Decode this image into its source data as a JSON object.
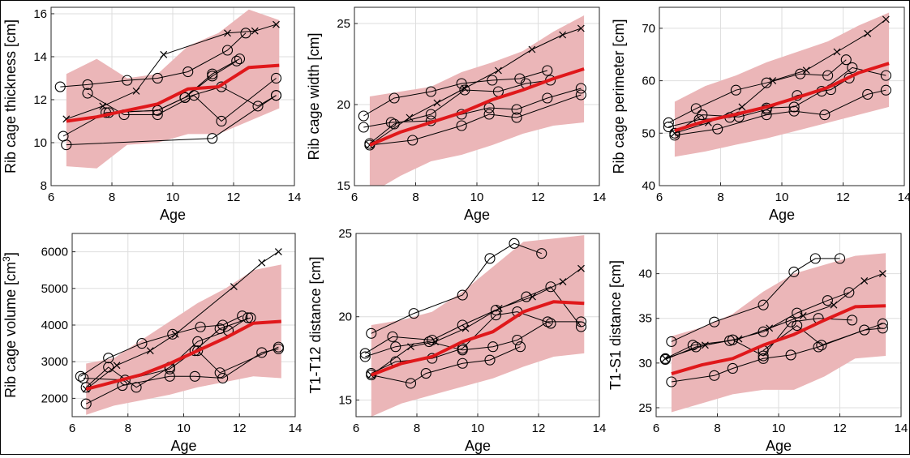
{
  "chart_data": [
    {
      "type": "line",
      "title": "",
      "xlabel": "Age",
      "ylabel": "Rib cage thickness [cm]",
      "xlim": [
        6,
        14
      ],
      "ylim": [
        8,
        16.3
      ],
      "xticks": [
        6,
        8,
        10,
        12,
        14
      ],
      "yticks": [
        8,
        10,
        12,
        14,
        16
      ],
      "grid": true,
      "mean": {
        "x": [
          6.5,
          7.5,
          8.5,
          9.5,
          10.5,
          11.5,
          12.5,
          13.5
        ],
        "y": [
          11.0,
          11.2,
          11.5,
          11.8,
          12.5,
          12.6,
          13.5,
          13.6
        ]
      },
      "band": {
        "x": [
          6.5,
          7.5,
          8.5,
          9.5,
          10.5,
          11.5,
          12.5,
          13.5
        ],
        "lower": [
          8.9,
          8.8,
          9.9,
          10.0,
          10.4,
          10.4,
          11.0,
          11.6
        ],
        "upper": [
          13.2,
          13.9,
          13.0,
          13.2,
          14.5,
          15.1,
          16.2,
          15.7
        ]
      },
      "series": [
        {
          "marker": "x",
          "x": [
            6.5,
            7.7,
            8.8,
            9.7,
            11.8,
            12.7,
            13.4
          ],
          "y": [
            11.1,
            11.7,
            12.4,
            14.1,
            15.1,
            15.2,
            15.5
          ]
        },
        {
          "marker": "o",
          "x": [
            6.3,
            7.2,
            8.5,
            9.5,
            10.5,
            11.8,
            12.4
          ],
          "y": [
            12.6,
            12.7,
            12.9,
            13.0,
            13.3,
            14.3,
            15.1
          ]
        },
        {
          "marker": "o",
          "x": [
            6.4,
            7.8,
            9.5,
            10.4,
            11.3,
            12.2
          ],
          "y": [
            10.3,
            11.4,
            11.5,
            12.1,
            13.2,
            13.9
          ]
        },
        {
          "marker": "o",
          "x": [
            6.5,
            11.3,
            13.4
          ],
          "y": [
            9.9,
            10.2,
            12.2
          ]
        },
        {
          "marker": "o",
          "x": [
            7.2,
            8.4,
            9.5,
            10.7,
            11.6,
            13.4
          ],
          "y": [
            12.3,
            11.3,
            11.3,
            12.2,
            11.0,
            13.0
          ]
        },
        {
          "marker": "o",
          "x": [
            7.9,
            9.5,
            10.4,
            11.3,
            12.1
          ],
          "y": [
            11.4,
            11.5,
            12.1,
            13.1,
            13.8
          ]
        },
        {
          "marker": "o",
          "x": [
            10.4,
            11.6,
            12.8,
            13.4
          ],
          "y": [
            12.1,
            12.6,
            11.7,
            12.2
          ]
        }
      ]
    },
    {
      "type": "line",
      "title": "",
      "xlabel": "Age",
      "ylabel": "Rib cage width [cm]",
      "xlim": [
        6,
        14
      ],
      "ylim": [
        15,
        26
      ],
      "xticks": [
        6,
        8,
        10,
        12,
        14
      ],
      "yticks": [
        15,
        20,
        25
      ],
      "grid": true,
      "mean": {
        "x": [
          6.5,
          7.5,
          8.5,
          9.5,
          10.5,
          11.5,
          12.5,
          13.5
        ],
        "y": [
          17.5,
          18.3,
          18.9,
          19.5,
          20.3,
          20.9,
          21.6,
          22.2
        ]
      },
      "band": {
        "x": [
          6.5,
          7.5,
          8.5,
          9.5,
          10.5,
          11.5,
          12.5,
          13.5
        ],
        "lower": [
          14.5,
          15.6,
          16.5,
          16.9,
          17.5,
          18.2,
          18.7,
          18.9
        ],
        "upper": [
          20.5,
          20.8,
          21.1,
          22.0,
          22.6,
          23.3,
          24.5,
          25.5
        ]
      },
      "series": [
        {
          "marker": "x",
          "x": [
            6.5,
            7.8,
            8.7,
            9.6,
            10.7,
            11.8,
            12.8,
            13.4
          ],
          "y": [
            17.5,
            19.2,
            20.1,
            21.0,
            22.1,
            23.4,
            24.3,
            24.7
          ]
        },
        {
          "marker": "o",
          "x": [
            6.3,
            7.3,
            8.5,
            9.5,
            10.5,
            11.4,
            12.3
          ],
          "y": [
            19.3,
            20.4,
            20.8,
            21.3,
            21.5,
            21.6,
            22.1
          ]
        },
        {
          "marker": "o",
          "x": [
            6.3,
            7.2,
            8.5,
            9.5,
            10.4,
            11.3,
            12.3,
            13.4
          ],
          "y": [
            18.6,
            18.9,
            19.0,
            19.4,
            19.8,
            19.7,
            20.4,
            21.0
          ]
        },
        {
          "marker": "o",
          "x": [
            6.5,
            7.9,
            9.5,
            10.4,
            11.3,
            13.4
          ],
          "y": [
            17.5,
            17.8,
            18.7,
            19.4,
            19.2,
            20.6
          ]
        },
        {
          "marker": "o",
          "x": [
            6.5,
            7.3,
            8.5,
            9.6,
            10.7,
            11.6,
            12.4
          ],
          "y": [
            17.6,
            18.8,
            19.4,
            20.9,
            20.8,
            21.3,
            21.5
          ]
        }
      ]
    },
    {
      "type": "line",
      "title": "",
      "xlabel": "Age",
      "ylabel": "Rib cage perimeter [cm]",
      "xlim": [
        6,
        14
      ],
      "ylim": [
        40,
        74
      ],
      "xticks": [
        6,
        8,
        10,
        12,
        14
      ],
      "yticks": [
        40,
        50,
        60,
        70
      ],
      "grid": true,
      "mean": {
        "x": [
          6.5,
          7.5,
          8.5,
          9.5,
          10.5,
          11.5,
          12.5,
          13.5
        ],
        "y": [
          50.5,
          52.3,
          53.6,
          55.0,
          56.8,
          58.7,
          61.5,
          63.3
        ]
      },
      "band": {
        "x": [
          6.5,
          7.5,
          8.5,
          9.5,
          10.5,
          11.5,
          12.5,
          13.5
        ],
        "lower": [
          45.5,
          46.5,
          47.8,
          49.0,
          50.5,
          52.0,
          53.5,
          55.0
        ],
        "upper": [
          56.0,
          59.0,
          61.0,
          63.5,
          65.5,
          67.5,
          70.5,
          73.0
        ]
      },
      "series": [
        {
          "marker": "x",
          "x": [
            6.5,
            7.6,
            8.7,
            9.7,
            10.8,
            11.8,
            12.8,
            13.4
          ],
          "y": [
            50.0,
            52.0,
            55.0,
            60.0,
            62.0,
            65.5,
            69.0,
            71.7
          ]
        },
        {
          "marker": "o",
          "x": [
            6.3,
            7.2,
            8.5,
            9.5,
            10.6,
            11.5,
            12.1
          ],
          "y": [
            52.0,
            54.7,
            58.2,
            59.6,
            61.3,
            61.0,
            64.0
          ]
        },
        {
          "marker": "o",
          "x": [
            6.3,
            7.3,
            8.3,
            9.5,
            10.4,
            11.3,
            12.3,
            13.4
          ],
          "y": [
            51.2,
            52.6,
            53.0,
            54.8,
            55.0,
            58.0,
            62.5,
            61.0
          ]
        },
        {
          "marker": "o",
          "x": [
            6.5,
            7.9,
            9.5,
            10.4,
            11.4,
            12.8,
            13.4
          ],
          "y": [
            49.6,
            50.8,
            53.5,
            54.2,
            53.5,
            57.4,
            58.2
          ]
        },
        {
          "marker": "o",
          "x": [
            6.5,
            7.4,
            8.6,
            9.5,
            10.5,
            11.6,
            12.2
          ],
          "y": [
            50.0,
            53.5,
            53.1,
            54.5,
            57.2,
            58.3,
            60.5
          ]
        }
      ]
    },
    {
      "type": "line",
      "title": "",
      "xlabel": "Age",
      "ylabel": "Rib cage volume [cm",
      "ylabel_sup": "3",
      "ylabel_end": "]",
      "xlim": [
        6,
        14
      ],
      "ylim": [
        1500,
        6500
      ],
      "xticks": [
        6,
        8,
        10,
        12,
        14
      ],
      "yticks": [
        2000,
        3000,
        4000,
        5000,
        6000
      ],
      "grid": true,
      "mean": {
        "x": [
          6.5,
          7.5,
          8.5,
          9.5,
          10.5,
          11.5,
          12.5,
          13.5
        ],
        "y": [
          2250,
          2450,
          2650,
          2950,
          3300,
          3650,
          4050,
          4100
        ]
      },
      "band": {
        "x": [
          6.5,
          7.5,
          8.5,
          9.5,
          10.5,
          11.5,
          12.5,
          13.5
        ],
        "lower": [
          1550,
          1800,
          1950,
          2100,
          2300,
          2450,
          2600,
          2550
        ],
        "upper": [
          2950,
          3100,
          3600,
          4100,
          4600,
          5000,
          5500,
          5650
        ]
      },
      "series": [
        {
          "marker": "x",
          "x": [
            6.5,
            7.6,
            8.8,
            9.7,
            11.8,
            12.8,
            13.4
          ],
          "y": [
            2250,
            2900,
            3300,
            3750,
            5050,
            5700,
            6000
          ]
        },
        {
          "marker": "o",
          "x": [
            6.3,
            7.3,
            8.5,
            9.6,
            10.6,
            11.4,
            12.1
          ],
          "y": [
            2600,
            3100,
            3500,
            3750,
            3950,
            4000,
            4250
          ]
        },
        {
          "marker": "o",
          "x": [
            6.4,
            7.9,
            9.5,
            10.4,
            11.3,
            12.4
          ],
          "y": [
            2550,
            2500,
            2800,
            3300,
            3900,
            4200
          ]
        },
        {
          "marker": "o",
          "x": [
            6.5,
            7.8,
            9.5,
            10.4,
            11.4,
            12.8,
            13.4
          ],
          "y": [
            1850,
            2350,
            2600,
            2600,
            2550,
            3250,
            3350
          ]
        },
        {
          "marker": "o",
          "x": [
            6.5,
            7.3,
            8.3,
            9.5,
            10.5,
            11.6,
            12.3
          ],
          "y": [
            2300,
            2850,
            2300,
            2850,
            3550,
            3850,
            4200
          ]
        },
        {
          "marker": "o",
          "x": [
            10.5,
            11.3,
            13.4
          ],
          "y": [
            3300,
            2700,
            3400
          ]
        }
      ]
    },
    {
      "type": "line",
      "title": "",
      "xlabel": "Age",
      "ylabel": "T1-T12 distance [cm]",
      "xlim": [
        6,
        14
      ],
      "ylim": [
        14,
        25
      ],
      "xticks": [
        6,
        8,
        10,
        12,
        14
      ],
      "yticks": [
        15,
        20,
        25
      ],
      "grid": true,
      "mean": {
        "x": [
          6.5,
          7.5,
          8.5,
          9.5,
          10.5,
          11.5,
          12.5,
          13.5
        ],
        "y": [
          16.5,
          17.2,
          17.6,
          18.5,
          19.1,
          20.3,
          20.9,
          20.8
        ]
      },
      "band": {
        "x": [
          6.5,
          7.5,
          8.5,
          9.5,
          10.5,
          11.5,
          12.5,
          13.5
        ],
        "lower": [
          14.0,
          14.8,
          15.3,
          15.8,
          16.3,
          17.0,
          17.6,
          17.8
        ],
        "upper": [
          19.5,
          19.8,
          20.3,
          21.5,
          23.0,
          24.5,
          24.7,
          24.9
        ]
      },
      "series": [
        {
          "marker": "x",
          "x": [
            6.5,
            7.8,
            8.6,
            9.6,
            10.7,
            11.8,
            12.8,
            13.4
          ],
          "y": [
            16.5,
            18.2,
            18.5,
            19.3,
            20.5,
            21.2,
            22.1,
            22.9
          ]
        },
        {
          "marker": "o",
          "x": [
            6.5,
            7.9,
            9.5,
            10.4,
            11.2,
            12.1
          ],
          "y": [
            19.0,
            20.2,
            21.3,
            23.5,
            24.4,
            23.8
          ]
        },
        {
          "marker": "o",
          "x": [
            6.3,
            7.2,
            8.5,
            9.5,
            10.6,
            11.6,
            12.4,
            13.4
          ],
          "y": [
            17.8,
            18.8,
            18.6,
            19.5,
            20.4,
            21.2,
            21.8,
            19.4
          ]
        },
        {
          "marker": "o",
          "x": [
            6.3,
            7.3,
            8.4,
            9.5,
            10.5,
            11.3,
            12.3,
            13.4
          ],
          "y": [
            17.6,
            18.2,
            18.5,
            18.0,
            18.2,
            18.6,
            19.7,
            19.7
          ]
        },
        {
          "marker": "o",
          "x": [
            6.5,
            7.8,
            8.3,
            9.5,
            10.4,
            11.4
          ],
          "y": [
            16.5,
            16.0,
            16.6,
            17.2,
            17.4,
            18.2
          ]
        },
        {
          "marker": "o",
          "x": [
            6.5,
            7.3,
            8.5,
            9.5,
            10.6,
            11.3,
            12.4
          ],
          "y": [
            16.6,
            17.3,
            17.5,
            18.1,
            20.1,
            20.3,
            19.6
          ]
        }
      ]
    },
    {
      "type": "line",
      "title": "",
      "xlabel": "Age",
      "ylabel": "T1-S1 distance [cm]",
      "xlim": [
        6,
        14
      ],
      "ylim": [
        24,
        44.5
      ],
      "xticks": [
        6,
        8,
        10,
        12,
        14
      ],
      "yticks": [
        25,
        30,
        35,
        40
      ],
      "grid": true,
      "mean": {
        "x": [
          6.5,
          7.5,
          8.5,
          9.5,
          10.5,
          11.5,
          12.5,
          13.5
        ],
        "y": [
          28.8,
          29.8,
          30.5,
          32.0,
          33.2,
          34.8,
          36.3,
          36.4
        ]
      },
      "band": {
        "x": [
          6.5,
          7.5,
          8.5,
          9.5,
          10.5,
          11.5,
          12.5,
          13.5
        ],
        "lower": [
          24.5,
          25.5,
          26.5,
          27.0,
          27.0,
          28.5,
          30.5,
          30.8
        ],
        "upper": [
          33.0,
          34.0,
          35.5,
          38.0,
          40.0,
          41.0,
          42.0,
          42.3
        ]
      },
      "series": [
        {
          "marker": "x",
          "x": [
            6.3,
            7.6,
            8.7,
            9.7,
            10.8,
            11.8,
            12.8,
            13.4
          ],
          "y": [
            30.5,
            32.0,
            32.7,
            33.9,
            35.3,
            36.5,
            39.2,
            40.0
          ]
        },
        {
          "marker": "o",
          "x": [
            6.5,
            7.9,
            9.5,
            10.5,
            11.2,
            12.0
          ],
          "y": [
            32.4,
            34.6,
            36.5,
            40.2,
            41.7,
            41.7
          ]
        },
        {
          "marker": "o",
          "x": [
            6.3,
            7.2,
            8.4,
            9.5,
            10.6,
            11.6,
            12.3
          ],
          "y": [
            30.5,
            32.0,
            32.5,
            33.5,
            35.6,
            37.0,
            37.9
          ]
        },
        {
          "marker": "o",
          "x": [
            6.3,
            7.3,
            8.5,
            9.5,
            10.4,
            11.3,
            12.4
          ],
          "y": [
            30.4,
            31.8,
            32.6,
            30.8,
            34.6,
            35.0,
            34.8
          ]
        },
        {
          "marker": "o",
          "x": [
            6.5,
            7.9,
            8.5,
            9.5,
            10.4,
            11.3,
            12.8,
            13.4
          ],
          "y": [
            27.9,
            28.6,
            29.4,
            30.5,
            30.9,
            31.8,
            33.7,
            33.9
          ]
        },
        {
          "marker": "o",
          "x": [
            9.5,
            10.6,
            11.4,
            13.4
          ],
          "y": [
            31.4,
            34.2,
            32.0,
            34.4
          ]
        }
      ]
    }
  ]
}
